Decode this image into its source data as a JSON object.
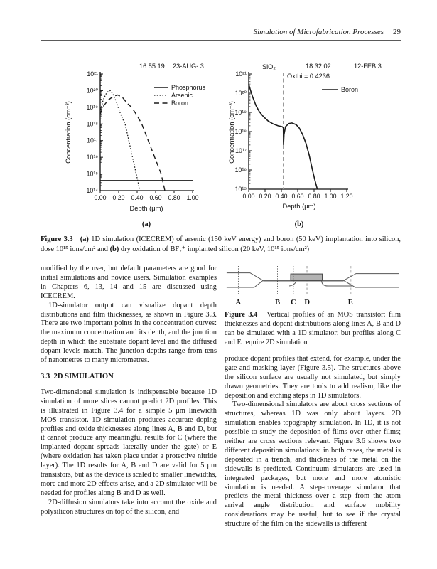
{
  "page": {
    "running_head": "Simulation of Microfabrication Processes",
    "page_number": "29"
  },
  "figure33": {
    "caption_segments": [
      {
        "t": "Figure 3.3",
        "b": true
      },
      {
        "t": "   "
      },
      {
        "t": "(a)",
        "b": true
      },
      {
        "t": " 1D simulation (ICECREM) of arsenic (150 keV energy) and boron (50 keV) implantation into silicon, dose 10¹⁵ ions/cm² and "
      },
      {
        "t": "(b)",
        "b": true
      },
      {
        "t": " dry oxidation of BF₂⁺ implanted silicon (20 keV, 10¹⁵ ions/cm²)"
      }
    ]
  },
  "chart_data": [
    {
      "id": "fig33a",
      "type": "line",
      "title_header": [
        "16:55:19",
        "23-AUG-:3"
      ],
      "xlabel": "Depth (μm)",
      "ylabel": "Concentration (cm⁻³)",
      "xlim": [
        0,
        1.0
      ],
      "xtick_values": [
        0,
        0.2,
        0.4,
        0.6,
        0.8,
        1.0
      ],
      "xtick_labels": [
        "0.00",
        "0.20",
        "0.40",
        "0.60",
        "0.80",
        "1.00"
      ],
      "ylog_range": [
        14,
        21
      ],
      "ytick_labels_top_down": [
        "10²¹",
        "10²⁰",
        "10¹⁹",
        "10¹⁸",
        "10¹⁷",
        "10¹⁶",
        "10¹⁵",
        "10¹⁴"
      ],
      "grid": false,
      "legend_position": "upper right",
      "series": [
        {
          "name": "Phosphorus",
          "style": "solid",
          "points": [
            [
              0,
              400000000000000.0
            ],
            [
              1.0,
              400000000000000.0
            ]
          ]
        },
        {
          "name": "Arsenic",
          "style": "dotted",
          "points": [
            [
              0,
              5e+18
            ],
            [
              0.03,
              2.5e+19
            ],
            [
              0.06,
              6e+19
            ],
            [
              0.09,
              9.5e+19
            ],
            [
              0.11,
              1e+20
            ],
            [
              0.14,
              6e+19
            ],
            [
              0.17,
              2.5e+19
            ],
            [
              0.2,
              8e+18
            ],
            [
              0.235,
              2.5e+18
            ],
            [
              0.27,
              1e+18
            ],
            [
              0.31,
              1e+17
            ],
            [
              0.35,
              1e+16
            ],
            [
              0.39,
              1000000000000000.0
            ],
            [
              0.43,
              100000000000000.0
            ]
          ]
        },
        {
          "name": "Boron",
          "style": "dashed",
          "points": [
            [
              0,
              4e+18
            ],
            [
              0.04,
              1.3e+19
            ],
            [
              0.09,
              2.8e+19
            ],
            [
              0.14,
              4.5e+19
            ],
            [
              0.19,
              5.5e+19
            ],
            [
              0.24,
              4e+19
            ],
            [
              0.29,
              1.8e+19
            ],
            [
              0.34,
              1e+19
            ],
            [
              0.4,
              3.2e+18
            ],
            [
              0.45,
              1e+18
            ],
            [
              0.52,
              1e+17
            ],
            [
              0.59,
              1e+16
            ],
            [
              0.66,
              1000000000000000.0
            ],
            [
              0.7,
              100000000000000.0
            ]
          ]
        }
      ],
      "sublabel": "(a)"
    },
    {
      "id": "fig33b",
      "type": "line",
      "title_header": [
        "18:32:02",
        "12-FEB:3"
      ],
      "annotations": [
        "SiO₂",
        "Oxthi = 0.4236"
      ],
      "vline_x": 0.4236,
      "xlabel": "Depth (μm)",
      "ylabel": "Concentration (cm⁻³)",
      "xlim": [
        0,
        1.2
      ],
      "xtick_values": [
        0,
        0.2,
        0.4,
        0.6,
        0.8,
        1.0,
        1.2
      ],
      "xtick_labels": [
        "0.00",
        "0.20",
        "0.40",
        "0.60",
        "0.80",
        "1.00",
        "1.20"
      ],
      "ylog_range": [
        15,
        21
      ],
      "ytick_labels_top_down": [
        "10²¹",
        "10²⁰",
        "10¹⁹",
        "10¹⁸",
        "10¹⁷",
        "10¹⁶",
        "10¹⁵"
      ],
      "grid": false,
      "legend_position": "upper right",
      "series": [
        {
          "name": "Boron",
          "style": "solid",
          "points": [
            [
              0,
              3e+20
            ],
            [
              0.02,
              1.5e+20
            ],
            [
              0.05,
              6e+19
            ],
            [
              0.09,
              2.2e+19
            ],
            [
              0.13,
              1.1e+19
            ],
            [
              0.18,
              6e+18
            ],
            [
              0.24,
              3.5e+18
            ],
            [
              0.3,
              2.5e+18
            ],
            [
              0.36,
              2e+18
            ],
            [
              0.41,
              1.8e+18
            ],
            [
              0.4236,
              1.6e+18
            ],
            [
              0.426,
              2e+17
            ],
            [
              0.432,
              7e+17
            ],
            [
              0.45,
              1.8e+18
            ],
            [
              0.49,
              2.6e+18
            ],
            [
              0.53,
              2.8e+18
            ],
            [
              0.58,
              2.3e+18
            ],
            [
              0.62,
              1.5e+18
            ],
            [
              0.66,
              7e+17
            ],
            [
              0.7,
              2.5e+17
            ],
            [
              0.74,
              6e+16
            ],
            [
              0.78,
              1e+16
            ],
            [
              0.81,
              3000000000000000.0
            ],
            [
              0.84,
              1000000000000000.0
            ]
          ]
        }
      ],
      "sublabel": "(b)"
    }
  ],
  "figure34": {
    "line_labels": [
      "A",
      "B",
      "C",
      "D",
      "E"
    ],
    "caption_segments": [
      {
        "t": "Figure 3.4",
        "b": true
      },
      {
        "t": "   Vertical profiles of an MOS transistor: film thicknesses and dopant distributions along lines A, B and D can be simulated with a 1D simulator; but profiles along C and E require 2D simulation"
      }
    ]
  },
  "body": {
    "left": [
      {
        "kind": "p",
        "text": "modified by the user, but default parameters are good for initial simulations and novice users. Simulation examples in Chapters 6, 13, 14 and 15 are discussed using ICECREM."
      },
      {
        "kind": "p-indent",
        "text": "1D-simulator output can visualize dopant depth distributions and film thicknesses, as shown in Figure 3.3. There are two important points in the concentration curves: the maximum concentration and its depth, and the junction depth in which the substrate dopant level and the diffused dopant levels match. The junction depths range from tens of nanometres to many micrometres."
      },
      {
        "kind": "h",
        "text": "3.3  2D SIMULATION"
      },
      {
        "kind": "p",
        "text": "Two-dimensional simulation is indispensable because 1D simulation of more slices cannot predict 2D profiles. This is illustrated in Figure 3.4 for a simple 5 μm linewidth MOS transistor. 1D simulation produces accurate doping profiles and oxide thicknesses along lines A, B and D, but it cannot produce any meaningful results for C (where the implanted dopant spreads laterally under the gate) or E (where oxidation has taken place under a protective nitride layer). The 1D results for A, B and D are valid for 5 μm transistors, but as the device is scaled to smaller linewidths, more and more 2D effects arise, and a 2D simulator will be needed for profiles along B and D as well."
      },
      {
        "kind": "p-indent",
        "text": "2D-diffusion simulators take into account the oxide and polysilicon structures on top of the silicon, and"
      }
    ],
    "right": [
      {
        "kind": "p",
        "text": "produce dopant profiles that extend, for example, under the gate and masking layer (Figure 3.5). The structures above the silicon surface are usually not simulated, but simply drawn geometries. They are tools to add realism, like the deposition and etching steps in 1D simulators."
      },
      {
        "kind": "p-indent",
        "text": "Two-dimensional simulators are about cross sections of structures, whereas 1D was only about layers. 2D simulation enables topography simulation. In 1D, it is not possible to study the deposition of films over other films; neither are cross sections relevant. Figure 3.6 shows two different deposition simulations: in both cases, the metal is deposited in a trench, and thickness of the metal on the sidewalls is predicted. Continuum simulators are used in integrated packages, but more and more atomistic simulation is needed. A step-coverage simulator that predicts the metal thickness over a step from the atom arrival angle distribution and surface mobility considerations may be useful, but to see if the crystal structure of the film on the sidewalls is different"
      }
    ]
  }
}
